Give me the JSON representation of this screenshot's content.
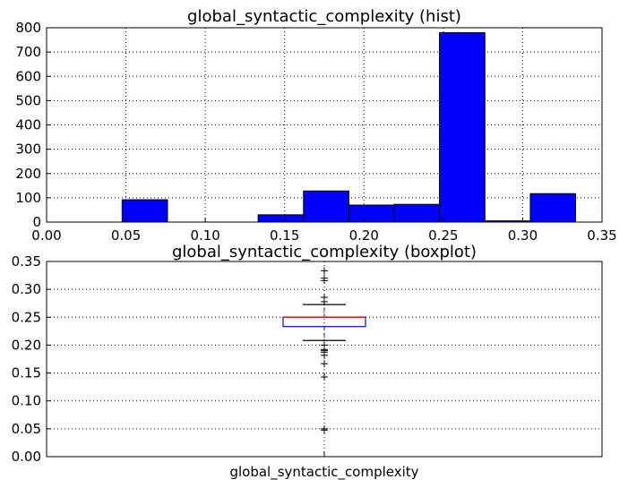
{
  "chart_data": [
    {
      "type": "bar",
      "title": "global_syntactic_complexity (hist)",
      "xlabel": "",
      "ylabel": "",
      "xlim": [
        0.0,
        0.35
      ],
      "ylim": [
        0,
        800
      ],
      "grid": true,
      "bar_color": "#0000ff",
      "x_ticks": [
        "0.00",
        "0.05",
        "0.10",
        "0.15",
        "0.20",
        "0.25",
        "0.30",
        "0.35"
      ],
      "y_ticks": [
        "0",
        "100",
        "200",
        "300",
        "400",
        "500",
        "600",
        "700",
        "800"
      ],
      "bins": [
        {
          "x0": 0.0476,
          "x1": 0.0762,
          "value": 92
        },
        {
          "x0": 0.0762,
          "x1": 0.1048,
          "value": 0
        },
        {
          "x0": 0.1048,
          "x1": 0.1333,
          "value": 0
        },
        {
          "x0": 0.1333,
          "x1": 0.1619,
          "value": 30
        },
        {
          "x0": 0.1619,
          "x1": 0.1905,
          "value": 128
        },
        {
          "x0": 0.1905,
          "x1": 0.219,
          "value": 70
        },
        {
          "x0": 0.219,
          "x1": 0.2476,
          "value": 73
        },
        {
          "x0": 0.2476,
          "x1": 0.2762,
          "value": 780
        },
        {
          "x0": 0.2762,
          "x1": 0.3048,
          "value": 5
        },
        {
          "x0": 0.3048,
          "x1": 0.3333,
          "value": 117
        }
      ]
    },
    {
      "type": "box",
      "title": "global_syntactic_complexity (boxplot)",
      "ylim": [
        0.0,
        0.35
      ],
      "grid": true,
      "category": "global_syntactic_complexity",
      "y_ticks": [
        "0.00",
        "0.05",
        "0.10",
        "0.15",
        "0.20",
        "0.25",
        "0.30",
        "0.35"
      ],
      "q1": 0.2333,
      "median": 0.25,
      "q3": 0.25,
      "whisker_low": 0.2083,
      "whisker_high": 0.2727,
      "box_color": "#0000ff",
      "median_color": "#ff0000",
      "outliers": [
        0.0476,
        0.05,
        0.1429,
        0.1667,
        0.1818,
        0.1875,
        0.1905,
        0.1923,
        0.2,
        0.2778,
        0.2857,
        0.3158,
        0.32,
        0.3333
      ]
    }
  ]
}
